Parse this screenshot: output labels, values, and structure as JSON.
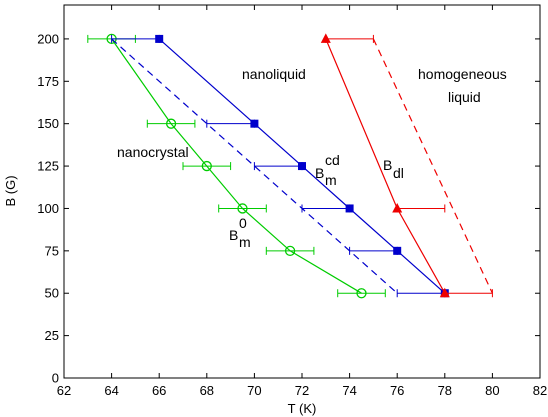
{
  "chart_data": {
    "type": "line",
    "xlabel": "T (K)",
    "ylabel": "B (G)",
    "xlim": [
      62,
      82
    ],
    "ylim": [
      0,
      220
    ],
    "xticks": [
      62,
      64,
      66,
      68,
      70,
      72,
      74,
      76,
      78,
      80,
      82
    ],
    "yticks": [
      0,
      25,
      50,
      75,
      100,
      125,
      150,
      175,
      200
    ],
    "grid": false,
    "legend": "none",
    "series": [
      {
        "key": "green",
        "color": "#00cc00",
        "style": "solid",
        "marker": "open-circle",
        "x": [
          64,
          66.5,
          68,
          69.5,
          71.5,
          74.5
        ],
        "y": [
          200,
          150,
          125,
          100,
          75,
          50
        ],
        "xerr": [
          [
            63,
            65
          ],
          [
            65.5,
            67.5
          ],
          [
            67,
            69
          ],
          [
            68.5,
            70.5
          ],
          [
            70.5,
            72.5
          ],
          [
            73.5,
            75.5
          ]
        ]
      },
      {
        "key": "blue-dashed",
        "color": "#0000cc",
        "style": "dashed",
        "marker": "none",
        "x": [
          64,
          76
        ],
        "y": [
          200,
          50
        ]
      },
      {
        "key": "blue-cd",
        "color": "#0000cc",
        "style": "solid",
        "marker": "filled-square",
        "x": [
          66,
          70,
          72,
          74,
          76,
          78
        ],
        "y": [
          200,
          150,
          125,
          100,
          75,
          50
        ],
        "xerr": [
          [
            64,
            66
          ],
          [
            68,
            70
          ],
          [
            70,
            72
          ],
          [
            72,
            74
          ],
          [
            74,
            76
          ],
          [
            76,
            78
          ]
        ]
      },
      {
        "key": "red-dl",
        "color": "#ee0000",
        "style": "solid",
        "marker": "filled-triangle",
        "x": [
          73,
          76,
          78
        ],
        "y": [
          200,
          100,
          50
        ],
        "xerr": [
          [
            73,
            75
          ],
          [
            76,
            78
          ],
          [
            78,
            80
          ]
        ]
      },
      {
        "key": "red-dashed",
        "color": "#ee0000",
        "style": "dashed",
        "marker": "none",
        "x": [
          75,
          80
        ],
        "y": [
          200,
          50
        ]
      }
    ],
    "annotations": {
      "nanoliquid": "nanoliquid",
      "homogeneous_1": "homogeneous",
      "homogeneous_2": "liquid",
      "nanocrystal": "nanocrystal",
      "bcd_base": "B",
      "bcd_sub": "m",
      "bcd_sup": "cd",
      "b0_base": "B",
      "b0_sub": "m",
      "b0_sup": "0",
      "bdl_base": "B",
      "bdl_sub": "dl"
    }
  }
}
